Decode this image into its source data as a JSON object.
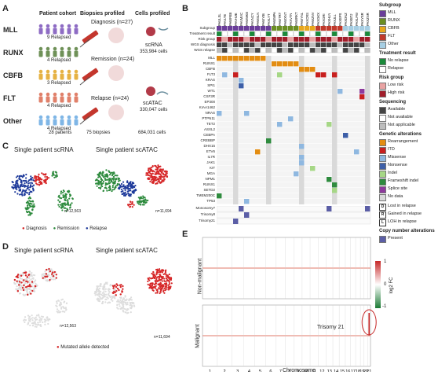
{
  "panel_labels": [
    "A",
    "B",
    "C",
    "D",
    "E"
  ],
  "panelA": {
    "col_titles": [
      "Patient cohort",
      "Biopsies profiled",
      "Cells profiled"
    ],
    "groups": [
      {
        "name": "MLL",
        "relapsed": "9 Relapsed",
        "color": "#8e6cc4"
      },
      {
        "name": "RUNX",
        "relapsed": "4 Relapsed",
        "color": "#6f9158"
      },
      {
        "name": "CBFB",
        "relapsed": "3 Relapsed",
        "color": "#e6b243"
      },
      {
        "name": "FLT",
        "relapsed": "4 Relapsed",
        "color": "#e0806a"
      },
      {
        "name": "Other",
        "relapsed": "4 Relapsed",
        "color": "#7fb6e6"
      }
    ],
    "patients_total": "28 patients",
    "biopsies": [
      "Diagnosis (n=27)",
      "Remission (n=24)",
      "Relapse (n=24)"
    ],
    "biopsies_total": "75 biopsies",
    "cells": [
      {
        "name": "scRNA",
        "count": "353,984 cells"
      },
      {
        "name": "scATAC",
        "count": "330,047 cells"
      }
    ],
    "cells_total": "684,031 cells"
  },
  "panelB": {
    "patients": [
      "PAULSL",
      "PAVLTE",
      "PAWFEB",
      "PAVHUE",
      "PAVMVC",
      "PAWMKE",
      "PAVNCY",
      "PAWSLN",
      "PAWYIB",
      "PAXLYT",
      "PAWMPA",
      "PAWTRT",
      "PAWXNT",
      "PAXVTN",
      "PAWRKT",
      "PAWYNL",
      "PAXCRS",
      "PAWZNV",
      "PAXGKX",
      "PAXGRI",
      "PAXHLN",
      "PAXJLL",
      "PAXEPX",
      "PAXDNZ",
      "PAXBTJ",
      "PAXLFW",
      "PAXYSR",
      "PAXZNR"
    ],
    "top_rows": [
      "Subgroup",
      "Treatment result",
      "Risk group",
      "WGS diagnosis",
      "WGS relapse"
    ],
    "genes": [
      "MLL",
      "RUNX1",
      "CBFB",
      "FLT3",
      "KRAS",
      "SPI1",
      "WT1",
      "CSF3R",
      "EP300",
      "KIAA1462",
      "NRAS",
      "PTPN11",
      "TET2",
      "ASXL2",
      "CEBPA",
      "CREBBP",
      "DHX15",
      "ETV6",
      "IL7R",
      "JAK1",
      "KIT",
      "MGA",
      "NPM1",
      "RUNX1",
      "SETD2",
      "TMEM200C",
      "TP53"
    ],
    "cnv_rows": [
      "Monosomy7",
      "Trisomy8",
      "Trisomy21"
    ],
    "legend": {
      "subgroup_title": "Subgroup",
      "subgroup": [
        {
          "label": "MLL",
          "color": "#6a3d9a"
        },
        {
          "label": "RUNX",
          "color": "#6b8e23"
        },
        {
          "label": "CBFB",
          "color": "#e8a71c"
        },
        {
          "label": "FLT",
          "color": "#c0392b"
        },
        {
          "label": "Other",
          "color": "#a6cee3"
        }
      ],
      "treatment_title": "Treatment result",
      "treatment": [
        {
          "label": "No relapse",
          "color": "#1a8a3a"
        },
        {
          "label": "Relapse",
          "color": "#ffffff"
        }
      ],
      "risk_title": "Risk group",
      "risk": [
        {
          "label": "Low risk",
          "color": "#e9a3a3"
        },
        {
          "label": "High risk",
          "color": "#a11d2a"
        }
      ],
      "seq_title": "Sequencing",
      "seq": [
        {
          "label": "Available",
          "color": "#444444"
        },
        {
          "label": "Not available",
          "color": "#ffffff"
        },
        {
          "label": "Not applicable",
          "color": "#bdbdbd"
        }
      ],
      "genetic_title": "Genetic alterations",
      "genetic": [
        {
          "label": "Rearrangement",
          "color": "#e38d12"
        },
        {
          "label": "ITD",
          "color": "#c8201f"
        },
        {
          "label": "Missense",
          "color": "#8fb8e0"
        },
        {
          "label": "Nonsense",
          "color": "#3d5fa8"
        },
        {
          "label": "Indel",
          "color": "#a6d786"
        },
        {
          "label": "Frameshift indel",
          "color": "#2e8b3e"
        },
        {
          "label": "Splice site",
          "color": "#8e3a9d"
        },
        {
          "label": "No data",
          "color": "#d9d9d9"
        }
      ],
      "relapse_marks": [
        {
          "letter": "D",
          "label": "Lost in relapse"
        },
        {
          "letter": "R",
          "label": "Gained in relapse"
        },
        {
          "letter": "L",
          "label": "LOH in relapse"
        }
      ],
      "cnv_title": "Copy number alterations",
      "cnv": [
        {
          "label": "Present",
          "color": "#5b5ea6"
        }
      ]
    }
  },
  "panelC": {
    "titles": [
      "Single patient scRNA",
      "Single patient scATAC"
    ],
    "counts": [
      "n=12,563",
      "n=11,694"
    ],
    "legend": [
      {
        "label": "Diagnosis",
        "color": "#d62728"
      },
      {
        "label": "Remission",
        "color": "#2e8b3e"
      },
      {
        "label": "Relapse",
        "color": "#1f3b9b"
      }
    ]
  },
  "panelD": {
    "titles": [
      "Single patient scRNA",
      "Single patient scATAC"
    ],
    "counts": [
      "n=12,563",
      "n=11,694"
    ],
    "legend": [
      {
        "label": "Mutated allele detected",
        "color": "#d62728"
      }
    ]
  },
  "panelE": {
    "row_labels": [
      "Non-malignant",
      "Malignant"
    ],
    "xlabel": "Chromosome",
    "chromosomes": [
      "1",
      "2",
      "3",
      "4",
      "5",
      "6",
      "7",
      "8",
      "9",
      "10",
      "11",
      "12",
      "13",
      "14",
      "15",
      "16",
      "17",
      "18",
      "19",
      "20",
      "21"
    ],
    "annotation": "Trisomy 21",
    "colorbar_label": "log2 FC",
    "colorbar_ticks": [
      "1",
      "0",
      "-1"
    ]
  }
}
